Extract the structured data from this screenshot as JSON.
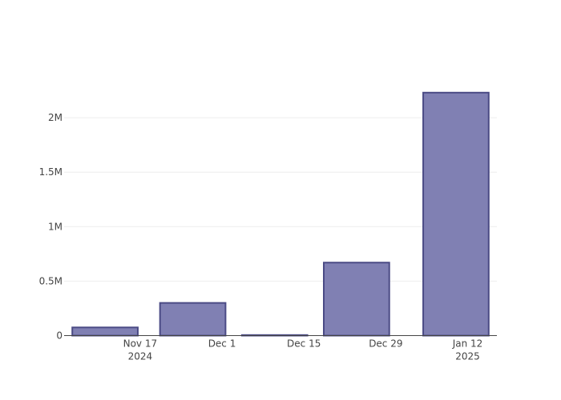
{
  "chart_data": {
    "type": "bar",
    "x": [
      "2024-11-11",
      "2024-11-26",
      "2024-12-10",
      "2024-12-24",
      "2025-01-10"
    ],
    "values": [
      75000,
      300000,
      5000,
      670000,
      2230000
    ],
    "color": "#8080b3",
    "line_color": "#4b4b85",
    "xlim": [
      "2024-11-04",
      "2025-01-17"
    ],
    "xticks": [
      {
        "value": "2024-11-17",
        "label": "Nov 17\n2024"
      },
      {
        "value": "2024-12-01",
        "label": "Dec 1"
      },
      {
        "value": "2024-12-15",
        "label": "Dec 15"
      },
      {
        "value": "2024-12-29",
        "label": "Dec 29"
      },
      {
        "value": "2025-01-12",
        "label": "Jan 12\n2025"
      }
    ],
    "ylim": [
      0,
      2346000
    ],
    "yticks": [
      0,
      {
        "value": 500000,
        "label": "0.5M"
      },
      {
        "value": 1000000,
        "label": "1M"
      },
      {
        "value": 1500000,
        "label": "1.5M"
      },
      {
        "value": 2000000,
        "label": "2M"
      }
    ],
    "grid": true
  }
}
